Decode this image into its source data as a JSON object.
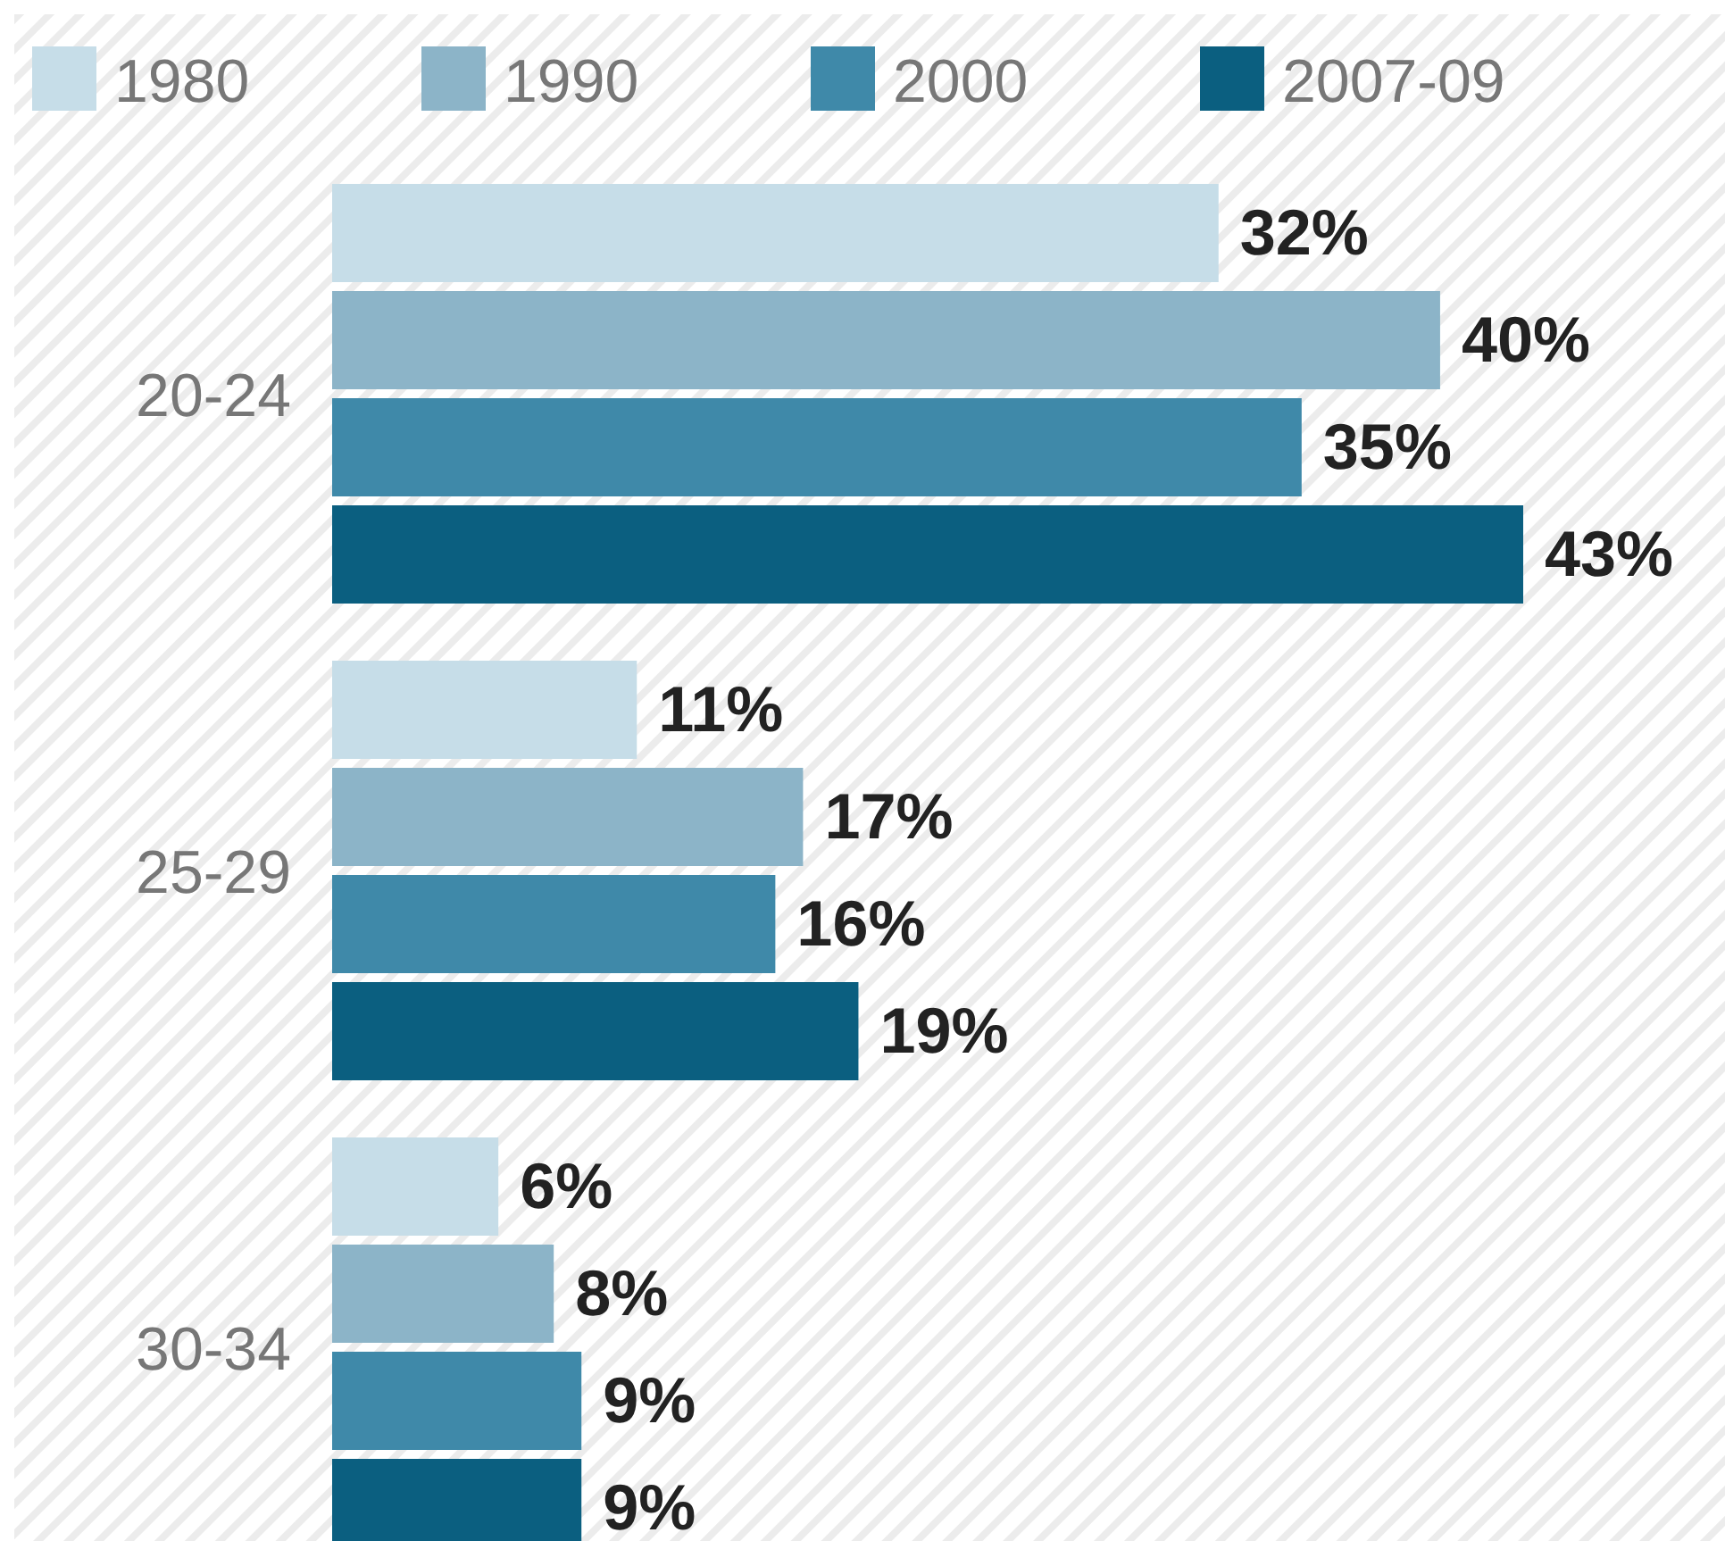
{
  "chart_data": {
    "type": "bar",
    "orientation": "horizontal",
    "categories": [
      "20-24",
      "25-29",
      "30-34"
    ],
    "legend": "top left",
    "series": [
      {
        "name": "1980",
        "color": "#c6dde8",
        "values": [
          32,
          11,
          6
        ],
        "value_labels": [
          "32%",
          "11%",
          "6%"
        ]
      },
      {
        "name": "1990",
        "color": "#8cb4c8",
        "values": [
          40,
          17,
          8
        ],
        "value_labels": [
          "40%",
          "17%",
          "8%"
        ]
      },
      {
        "name": "2000",
        "color": "#3f89a9",
        "values": [
          35,
          16,
          9
        ],
        "value_labels": [
          "35%",
          "16%",
          "9%"
        ]
      },
      {
        "name": "2007-09",
        "color": "#0b5f80",
        "values": [
          43,
          19,
          9
        ],
        "value_labels": [
          "43%",
          "19%",
          "9%"
        ]
      }
    ]
  }
}
